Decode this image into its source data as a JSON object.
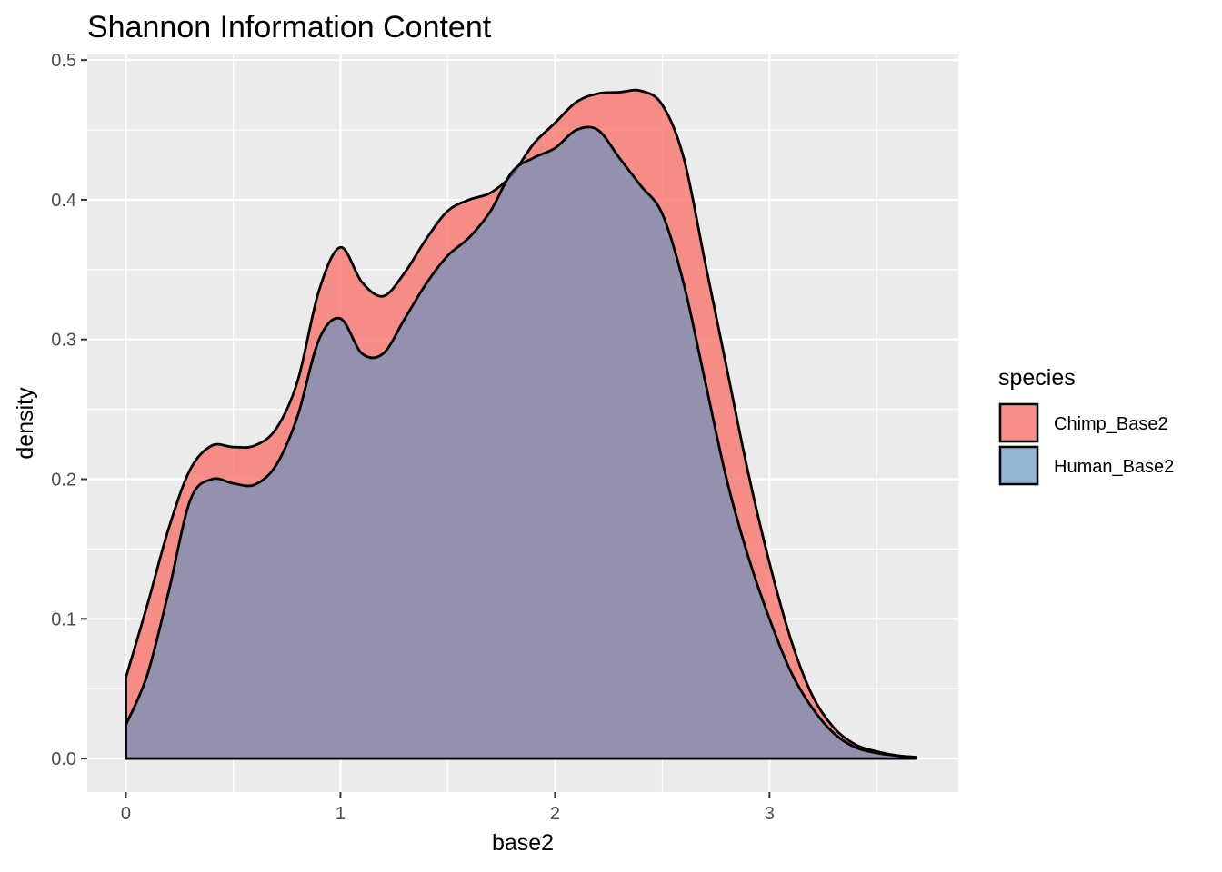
{
  "chart_data": {
    "type": "area",
    "title": "Shannon Information Content",
    "xlabel": "base2",
    "ylabel": "density",
    "xlim": [
      -0.18,
      3.88
    ],
    "ylim": [
      -0.024,
      0.504
    ],
    "x_ticks": [
      0,
      1,
      2,
      3
    ],
    "y_ticks": [
      0.0,
      0.1,
      0.2,
      0.3,
      0.4,
      0.5
    ],
    "x_tick_labels": [
      "0",
      "1",
      "2",
      "3"
    ],
    "y_tick_labels": [
      "0.0",
      "0.1",
      "0.2",
      "0.3",
      "0.4",
      "0.5"
    ],
    "grid": true,
    "legend": {
      "title": "species",
      "position": "right"
    },
    "series": [
      {
        "name": "Chimp_Base2",
        "color": "#F8766D",
        "fill_opacity": 0.8,
        "points": [
          [
            0.0,
            0.058
          ],
          [
            0.1,
            0.11
          ],
          [
            0.2,
            0.165
          ],
          [
            0.3,
            0.207
          ],
          [
            0.4,
            0.224
          ],
          [
            0.5,
            0.223
          ],
          [
            0.6,
            0.224
          ],
          [
            0.7,
            0.236
          ],
          [
            0.8,
            0.27
          ],
          [
            0.9,
            0.335
          ],
          [
            1.0,
            0.366
          ],
          [
            1.1,
            0.341
          ],
          [
            1.2,
            0.331
          ],
          [
            1.3,
            0.348
          ],
          [
            1.4,
            0.372
          ],
          [
            1.5,
            0.392
          ],
          [
            1.6,
            0.4
          ],
          [
            1.7,
            0.405
          ],
          [
            1.8,
            0.418
          ],
          [
            1.9,
            0.44
          ],
          [
            2.0,
            0.455
          ],
          [
            2.1,
            0.47
          ],
          [
            2.2,
            0.476
          ],
          [
            2.3,
            0.477
          ],
          [
            2.4,
            0.478
          ],
          [
            2.5,
            0.468
          ],
          [
            2.6,
            0.43
          ],
          [
            2.7,
            0.355
          ],
          [
            2.8,
            0.28
          ],
          [
            2.9,
            0.205
          ],
          [
            3.0,
            0.14
          ],
          [
            3.1,
            0.085
          ],
          [
            3.2,
            0.045
          ],
          [
            3.3,
            0.022
          ],
          [
            3.4,
            0.01
          ],
          [
            3.5,
            0.005
          ],
          [
            3.6,
            0.002
          ],
          [
            3.68,
            0.001
          ]
        ]
      },
      {
        "name": "Human_Base2",
        "color": "#5E93C2",
        "fill_opacity": 0.65,
        "points": [
          [
            0.0,
            0.024
          ],
          [
            0.1,
            0.06
          ],
          [
            0.2,
            0.12
          ],
          [
            0.3,
            0.185
          ],
          [
            0.4,
            0.2
          ],
          [
            0.5,
            0.197
          ],
          [
            0.6,
            0.196
          ],
          [
            0.7,
            0.21
          ],
          [
            0.8,
            0.245
          ],
          [
            0.9,
            0.3
          ],
          [
            1.0,
            0.315
          ],
          [
            1.1,
            0.29
          ],
          [
            1.2,
            0.29
          ],
          [
            1.3,
            0.315
          ],
          [
            1.4,
            0.34
          ],
          [
            1.5,
            0.36
          ],
          [
            1.6,
            0.373
          ],
          [
            1.7,
            0.392
          ],
          [
            1.8,
            0.42
          ],
          [
            1.9,
            0.43
          ],
          [
            2.0,
            0.437
          ],
          [
            2.1,
            0.45
          ],
          [
            2.2,
            0.45
          ],
          [
            2.3,
            0.43
          ],
          [
            2.4,
            0.41
          ],
          [
            2.5,
            0.39
          ],
          [
            2.6,
            0.34
          ],
          [
            2.7,
            0.27
          ],
          [
            2.8,
            0.2
          ],
          [
            2.9,
            0.145
          ],
          [
            3.0,
            0.1
          ],
          [
            3.1,
            0.062
          ],
          [
            3.2,
            0.036
          ],
          [
            3.3,
            0.018
          ],
          [
            3.4,
            0.008
          ],
          [
            3.5,
            0.004
          ],
          [
            3.6,
            0.002
          ],
          [
            3.68,
            0.001
          ]
        ]
      }
    ]
  }
}
